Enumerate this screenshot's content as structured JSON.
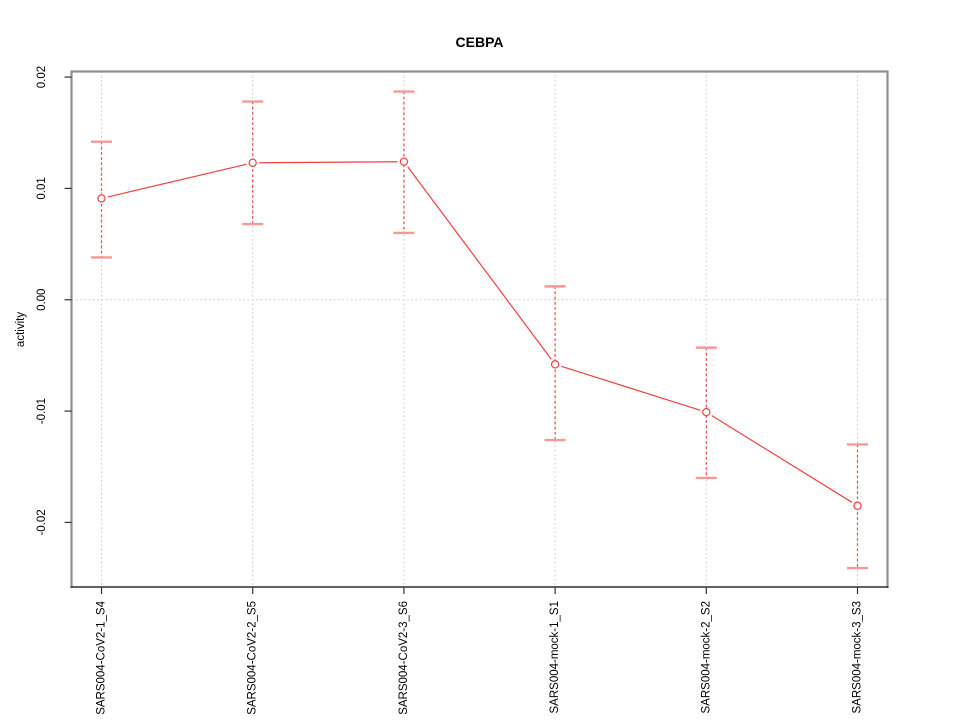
{
  "figure": {
    "title": "CEBPA",
    "background": "#ffffff"
  },
  "chart_data": {
    "type": "line",
    "title": "CEBPA",
    "xlabel": "",
    "ylabel": "activity",
    "legend": "none",
    "marker": "open-circle",
    "error_bars": true,
    "categories": [
      "SARS004-CoV2-1_S4",
      "SARS004-CoV2-2_S5",
      "SARS004-CoV2-3_S6",
      "SARS004-mock-1_S1",
      "SARS004-mock-2_S2",
      "SARS004-mock-3_S3"
    ],
    "series": [
      {
        "name": "activity",
        "values": [
          0.0091,
          0.0123,
          0.0124,
          -0.0058,
          -0.0101,
          -0.0185
        ],
        "ci_low": [
          0.0038,
          0.0068,
          0.006,
          -0.0126,
          -0.016,
          -0.0241
        ],
        "ci_high": [
          0.0142,
          0.0178,
          0.0187,
          0.0012,
          -0.0043,
          -0.013
        ],
        "color": "#ee4040"
      }
    ],
    "ylim": [
      -0.0258,
      0.0205
    ],
    "yticks": [
      0.02,
      0.01,
      0,
      -0.01,
      -0.02
    ],
    "ytick_labels": [
      "0.02",
      "0.01",
      "0.00",
      "-0.01",
      "-0.02"
    ],
    "grid": {
      "vertical_at_categories": true,
      "horizontal_at_values": [
        0
      ]
    },
    "colors": {
      "line": "#ee4040",
      "stem": "#ea5555",
      "cap": "#f59898",
      "grid": "#c9c9c9",
      "frame": "#909090",
      "tick": "#333333",
      "text": "#000000"
    }
  }
}
